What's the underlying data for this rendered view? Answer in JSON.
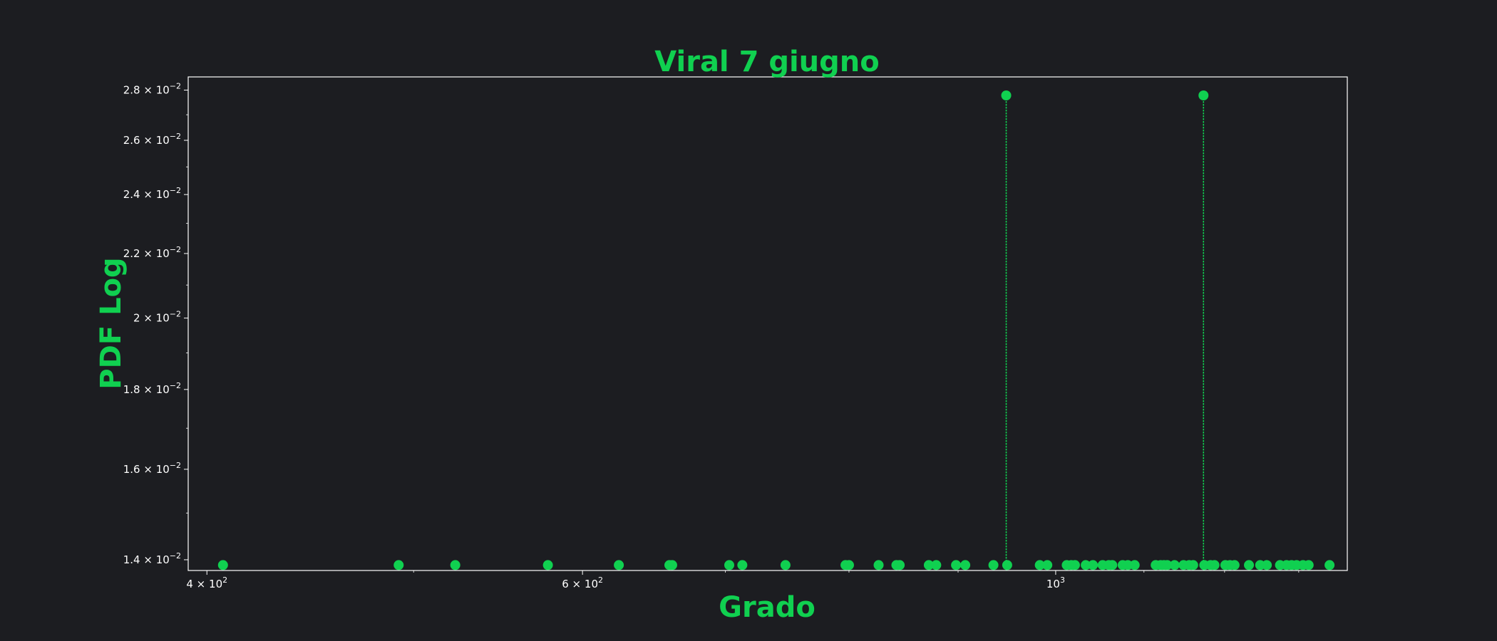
{
  "colors": {
    "background": "#1c1d21",
    "accent": "#10d050",
    "axes": "#ffffff",
    "text": "#ffffff"
  },
  "chart_data": {
    "type": "stem",
    "title": "Viral 7 giugno",
    "xlabel": "Grado",
    "ylabel": "PDF Log",
    "xscale": "log",
    "yscale": "log",
    "xlim": [
      392,
      1370
    ],
    "ylim": [
      0.01378,
      0.02855
    ],
    "xticks": [
      {
        "value": 400,
        "mantissa": "4",
        "exp": "2"
      },
      {
        "value": 600,
        "mantissa": "6",
        "exp": "2"
      },
      {
        "value": 1000,
        "mantissa": "",
        "exp": "3"
      }
    ],
    "yticks": [
      {
        "value": 0.014,
        "mantissa": "1.4",
        "exp": "−2"
      },
      {
        "value": 0.016,
        "mantissa": "1.6",
        "exp": "−2"
      },
      {
        "value": 0.018,
        "mantissa": "1.8",
        "exp": "−2"
      },
      {
        "value": 0.02,
        "mantissa": "2",
        "exp": "−2"
      },
      {
        "value": 0.022,
        "mantissa": "2.2",
        "exp": "−2"
      },
      {
        "value": 0.024,
        "mantissa": "2.4",
        "exp": "−2"
      },
      {
        "value": 0.026,
        "mantissa": "2.6",
        "exp": "−2"
      },
      {
        "value": 0.028,
        "mantissa": "2.8",
        "exp": "−2"
      }
    ],
    "points": [
      {
        "x": 407,
        "y": 0.01389
      },
      {
        "x": 492,
        "y": 0.01389
      },
      {
        "x": 523,
        "y": 0.01389
      },
      {
        "x": 578,
        "y": 0.01389
      },
      {
        "x": 624,
        "y": 0.01389
      },
      {
        "x": 659,
        "y": 0.01389
      },
      {
        "x": 661,
        "y": 0.01389
      },
      {
        "x": 703,
        "y": 0.01389
      },
      {
        "x": 713,
        "y": 0.01389
      },
      {
        "x": 747,
        "y": 0.01389
      },
      {
        "x": 797,
        "y": 0.01389
      },
      {
        "x": 800,
        "y": 0.01389
      },
      {
        "x": 826,
        "y": 0.01389
      },
      {
        "x": 842,
        "y": 0.01389
      },
      {
        "x": 845,
        "y": 0.01389
      },
      {
        "x": 872,
        "y": 0.01389
      },
      {
        "x": 879,
        "y": 0.01389
      },
      {
        "x": 898,
        "y": 0.01389
      },
      {
        "x": 907,
        "y": 0.01389
      },
      {
        "x": 935,
        "y": 0.01389
      },
      {
        "x": 948,
        "y": 0.02778
      },
      {
        "x": 949,
        "y": 0.01389
      },
      {
        "x": 983,
        "y": 0.01389
      },
      {
        "x": 991,
        "y": 0.01389
      },
      {
        "x": 1012,
        "y": 0.01389
      },
      {
        "x": 1017,
        "y": 0.01389
      },
      {
        "x": 1021,
        "y": 0.01389
      },
      {
        "x": 1033,
        "y": 0.01389
      },
      {
        "x": 1041,
        "y": 0.01389
      },
      {
        "x": 1052,
        "y": 0.01389
      },
      {
        "x": 1059,
        "y": 0.01389
      },
      {
        "x": 1063,
        "y": 0.01389
      },
      {
        "x": 1075,
        "y": 0.01389
      },
      {
        "x": 1081,
        "y": 0.01389
      },
      {
        "x": 1089,
        "y": 0.01389
      },
      {
        "x": 1114,
        "y": 0.01389
      },
      {
        "x": 1120,
        "y": 0.01389
      },
      {
        "x": 1124,
        "y": 0.01389
      },
      {
        "x": 1128,
        "y": 0.01389
      },
      {
        "x": 1137,
        "y": 0.01389
      },
      {
        "x": 1148,
        "y": 0.01389
      },
      {
        "x": 1155,
        "y": 0.01389
      },
      {
        "x": 1160,
        "y": 0.01389
      },
      {
        "x": 1173,
        "y": 0.02778
      },
      {
        "x": 1174,
        "y": 0.01389
      },
      {
        "x": 1182,
        "y": 0.01389
      },
      {
        "x": 1187,
        "y": 0.01389
      },
      {
        "x": 1201,
        "y": 0.01389
      },
      {
        "x": 1207,
        "y": 0.01389
      },
      {
        "x": 1213,
        "y": 0.01389
      },
      {
        "x": 1232,
        "y": 0.01389
      },
      {
        "x": 1247,
        "y": 0.01389
      },
      {
        "x": 1256,
        "y": 0.01389
      },
      {
        "x": 1274,
        "y": 0.01389
      },
      {
        "x": 1283,
        "y": 0.01389
      },
      {
        "x": 1290,
        "y": 0.01389
      },
      {
        "x": 1297,
        "y": 0.01389
      },
      {
        "x": 1306,
        "y": 0.01389
      },
      {
        "x": 1314,
        "y": 0.01389
      },
      {
        "x": 1344,
        "y": 0.01389
      }
    ]
  }
}
